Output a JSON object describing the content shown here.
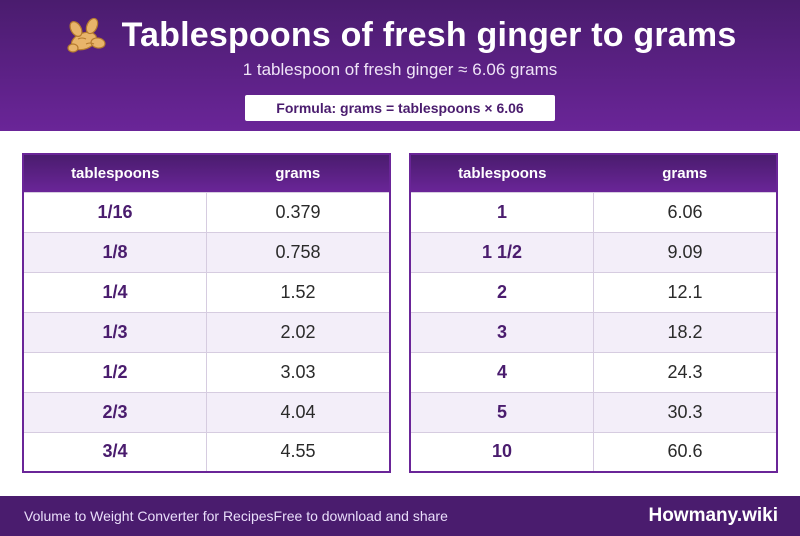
{
  "header": {
    "icon": "ginger-icon",
    "title": "Tablespoons of fresh ginger to grams",
    "subtitle": "1 tablespoon of fresh ginger ≈ 6.06 grams",
    "formula": "Formula: grams = tablespoons × 6.06"
  },
  "left_table": {
    "col1": "tablespoons",
    "col2": "grams",
    "rows": [
      {
        "tbsp": "1/16",
        "grams": "0.379"
      },
      {
        "tbsp": "1/8",
        "grams": "0.758"
      },
      {
        "tbsp": "1/4",
        "grams": "1.52"
      },
      {
        "tbsp": "1/3",
        "grams": "2.02"
      },
      {
        "tbsp": "1/2",
        "grams": "3.03"
      },
      {
        "tbsp": "2/3",
        "grams": "4.04"
      },
      {
        "tbsp": "3/4",
        "grams": "4.55"
      }
    ]
  },
  "right_table": {
    "col1": "tablespoons",
    "col2": "grams",
    "rows": [
      {
        "tbsp": "1",
        "grams": "6.06"
      },
      {
        "tbsp": "1 1/2",
        "grams": "9.09"
      },
      {
        "tbsp": "2",
        "grams": "12.1"
      },
      {
        "tbsp": "3",
        "grams": "18.2"
      },
      {
        "tbsp": "4",
        "grams": "24.3"
      },
      {
        "tbsp": "5",
        "grams": "30.3"
      },
      {
        "tbsp": "10",
        "grams": "60.6"
      }
    ]
  },
  "footer": {
    "text1": "Volume to Weight Converter for Recipes",
    "text2": "Free to download and share",
    "brand": "Howmany.wiki"
  },
  "colors": {
    "primary": "#4a1c6e",
    "accent": "#6a2598",
    "row_alt": "#f3eef9"
  }
}
